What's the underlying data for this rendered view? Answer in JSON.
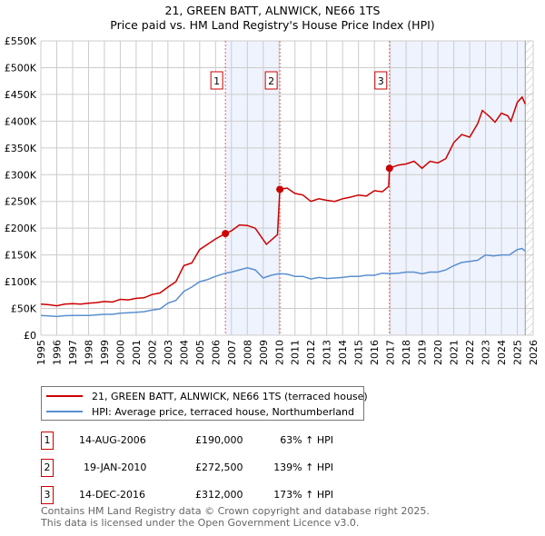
{
  "title_line1": "21, GREEN BATT, ALNWICK, NE66 1TS",
  "title_line2": "Price paid vs. HM Land Registry's House Price Index (HPI)",
  "chart_data": {
    "type": "line",
    "xlim": [
      1995,
      2026
    ],
    "ylim": [
      0,
      550000
    ],
    "x_ticks": [
      "1995",
      "1996",
      "1997",
      "1998",
      "1999",
      "2000",
      "2001",
      "2002",
      "2003",
      "2004",
      "2005",
      "2006",
      "2007",
      "2008",
      "2009",
      "2010",
      "2011",
      "2012",
      "2013",
      "2014",
      "2015",
      "2016",
      "2017",
      "2018",
      "2019",
      "2020",
      "2021",
      "2022",
      "2023",
      "2024",
      "2025",
      "2026"
    ],
    "y_ticks": [
      {
        "v": 0,
        "label": "£0"
      },
      {
        "v": 50000,
        "label": "£50K"
      },
      {
        "v": 100000,
        "label": "£100K"
      },
      {
        "v": 150000,
        "label": "£150K"
      },
      {
        "v": 200000,
        "label": "£200K"
      },
      {
        "v": 250000,
        "label": "£250K"
      },
      {
        "v": 300000,
        "label": "£300K"
      },
      {
        "v": 350000,
        "label": "£350K"
      },
      {
        "v": 400000,
        "label": "£400K"
      },
      {
        "v": 450000,
        "label": "£450K"
      },
      {
        "v": 500000,
        "label": "£500K"
      },
      {
        "v": 550000,
        "label": "£550K"
      }
    ],
    "grid": true,
    "shaded_ranges": [
      [
        2006.62,
        2010.05
      ],
      [
        2016.95,
        2025.5
      ]
    ],
    "hatched_from": 2025.5,
    "series": [
      {
        "name": "21, GREEN BATT, ALNWICK, NE66 1TS (terraced house)",
        "color": "#cc0000",
        "x": [
          1995,
          1995.5,
          1996,
          1996.5,
          1997,
          1997.5,
          1998,
          1998.5,
          1999,
          1999.5,
          2000,
          2000.5,
          2001,
          2001.5,
          2002,
          2002.5,
          2003,
          2003.5,
          2004,
          2004.5,
          2005,
          2005.5,
          2006,
          2006.62,
          2007,
          2007.5,
          2008,
          2008.5,
          2009.2,
          2009.9,
          2010.05,
          2010.5,
          2011,
          2011.5,
          2012,
          2012.5,
          2013,
          2013.5,
          2014,
          2014.5,
          2015,
          2015.5,
          2016,
          2016.5,
          2016.9,
          2016.95,
          2017.5,
          2018,
          2018.5,
          2019,
          2019.5,
          2020,
          2020.5,
          2021,
          2021.5,
          2022,
          2022.5,
          2022.8,
          2023.2,
          2023.6,
          2024,
          2024.4,
          2024.6,
          2025,
          2025.3,
          2025.5
        ],
        "y": [
          58000,
          57000,
          55000,
          58000,
          59000,
          58000,
          60000,
          61000,
          63000,
          62000,
          67000,
          66000,
          69000,
          70000,
          76000,
          79000,
          90000,
          100000,
          130000,
          135000,
          160000,
          170000,
          180000,
          190000,
          195000,
          206000,
          205000,
          200000,
          170000,
          188000,
          272500,
          275000,
          265000,
          262000,
          250000,
          255000,
          252000,
          250000,
          255000,
          258000,
          262000,
          260000,
          270000,
          268000,
          278000,
          312000,
          318000,
          320000,
          325000,
          312000,
          325000,
          322000,
          330000,
          360000,
          375000,
          370000,
          395000,
          420000,
          410000,
          398000,
          415000,
          410000,
          400000,
          435000,
          445000,
          432000
        ]
      },
      {
        "name": "HPI: Average price, terraced house, Northumberland",
        "color": "#5b8fd0",
        "x": [
          1995,
          1995.5,
          1996,
          1996.5,
          1997,
          1997.5,
          1998,
          1998.5,
          1999,
          1999.5,
          2000,
          2000.5,
          2001,
          2001.5,
          2002,
          2002.5,
          2003,
          2003.5,
          2004,
          2004.5,
          2005,
          2005.5,
          2006,
          2006.62,
          2007,
          2007.5,
          2008,
          2008.5,
          2009,
          2009.5,
          2010,
          2010.5,
          2011,
          2011.5,
          2012,
          2012.5,
          2013,
          2013.5,
          2014,
          2014.5,
          2015,
          2015.5,
          2016,
          2016.5,
          2017,
          2017.5,
          2018,
          2018.5,
          2019,
          2019.5,
          2020,
          2020.5,
          2021,
          2021.5,
          2022,
          2022.5,
          2023,
          2023.5,
          2024,
          2024.5,
          2025,
          2025.3,
          2025.5
        ],
        "y": [
          37000,
          36000,
          35000,
          36500,
          37000,
          37000,
          37000,
          38000,
          39000,
          39000,
          41000,
          42000,
          43000,
          44000,
          47000,
          49000,
          60000,
          65000,
          82000,
          90000,
          100000,
          104000,
          110000,
          116000,
          118000,
          122000,
          126000,
          122000,
          107000,
          112000,
          115000,
          114000,
          110000,
          110000,
          105000,
          108000,
          106000,
          107000,
          108000,
          110000,
          110000,
          112000,
          112000,
          116000,
          115000,
          116000,
          118000,
          118000,
          115000,
          118000,
          118000,
          122000,
          130000,
          136000,
          138000,
          140000,
          150000,
          148000,
          150000,
          150000,
          160000,
          162000,
          157000
        ]
      }
    ],
    "sales": [
      {
        "label": "1",
        "x": 2006.62,
        "y": 190000
      },
      {
        "label": "2",
        "x": 2010.05,
        "y": 272500
      },
      {
        "label": "3",
        "x": 2016.95,
        "y": 312000
      }
    ]
  },
  "legend": [
    {
      "label": "21, GREEN BATT, ALNWICK, NE66 1TS (terraced house)",
      "color": "#cc0000"
    },
    {
      "label": "HPI: Average price, terraced house, Northumberland",
      "color": "#5b8fd0"
    }
  ],
  "transactions": [
    {
      "num": "1",
      "date": "14-AUG-2006",
      "price": "£190,000",
      "hpi": "63% ↑ HPI"
    },
    {
      "num": "2",
      "date": "19-JAN-2010",
      "price": "£272,500",
      "hpi": "139% ↑ HPI"
    },
    {
      "num": "3",
      "date": "14-DEC-2016",
      "price": "£312,000",
      "hpi": "173% ↑ HPI"
    }
  ],
  "footer_line1": "Contains HM Land Registry data © Crown copyright and database right 2025.",
  "footer_line2": "This data is licensed under the Open Government Licence v3.0."
}
